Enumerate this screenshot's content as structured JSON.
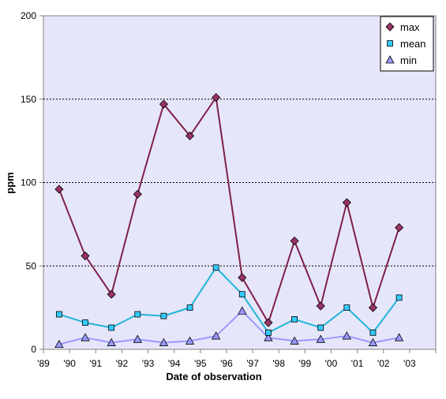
{
  "chart_data": {
    "type": "line",
    "xlabel": "Date of observation",
    "ylabel": "ppm",
    "xlim": [
      1989,
      2004
    ],
    "ylim": [
      0,
      200
    ],
    "x_tick_labels": [
      "'89",
      "'90",
      "'91",
      "'92",
      "'93",
      "'94",
      "'95",
      "'96",
      "'97",
      "'98",
      "'99",
      "'00",
      "'01",
      "'02",
      "'03"
    ],
    "y_tick_labels": [
      "0",
      "50",
      "100",
      "150",
      "200"
    ],
    "y_ticks": [
      0,
      50,
      100,
      150,
      200
    ],
    "grid": "horizontal dashed",
    "legend_position": "top-right",
    "background_color": "#e6e6fa",
    "series": [
      {
        "name": "max",
        "marker": "diamond",
        "line_color": "#7f2047",
        "marker_color": "#993366",
        "x": [
          1989.6,
          1990.6,
          1991.6,
          1992.6,
          1993.6,
          1994.6,
          1995.6,
          1996.6,
          1997.6,
          1998.6,
          1999.6,
          2000.6,
          2001.6,
          2002.6
        ],
        "values": [
          96,
          56,
          33,
          93,
          147,
          128,
          151,
          43,
          16,
          65,
          26,
          88,
          25,
          73
        ]
      },
      {
        "name": "mean",
        "marker": "square",
        "line_color": "#1fb5d8",
        "marker_color": "#33ccff",
        "x": [
          1989.6,
          1990.6,
          1991.6,
          1992.6,
          1993.6,
          1994.6,
          1995.6,
          1996.6,
          1997.6,
          1998.6,
          1999.6,
          2000.6,
          2001.6,
          2002.6
        ],
        "values": [
          21,
          16,
          13,
          21,
          20,
          25,
          49,
          33,
          10,
          18,
          13,
          25,
          10,
          31
        ]
      },
      {
        "name": "min",
        "marker": "triangle",
        "line_color": "#9999ff",
        "marker_color": "#9999ff",
        "x": [
          1989.6,
          1990.6,
          1991.6,
          1992.6,
          1993.6,
          1994.6,
          1995.6,
          1996.6,
          1997.6,
          1998.6,
          1999.6,
          2000.6,
          2001.6,
          2002.6
        ],
        "values": [
          3,
          7,
          4,
          6,
          4,
          5,
          8,
          23,
          7,
          5,
          6,
          8,
          4,
          7
        ]
      }
    ]
  }
}
